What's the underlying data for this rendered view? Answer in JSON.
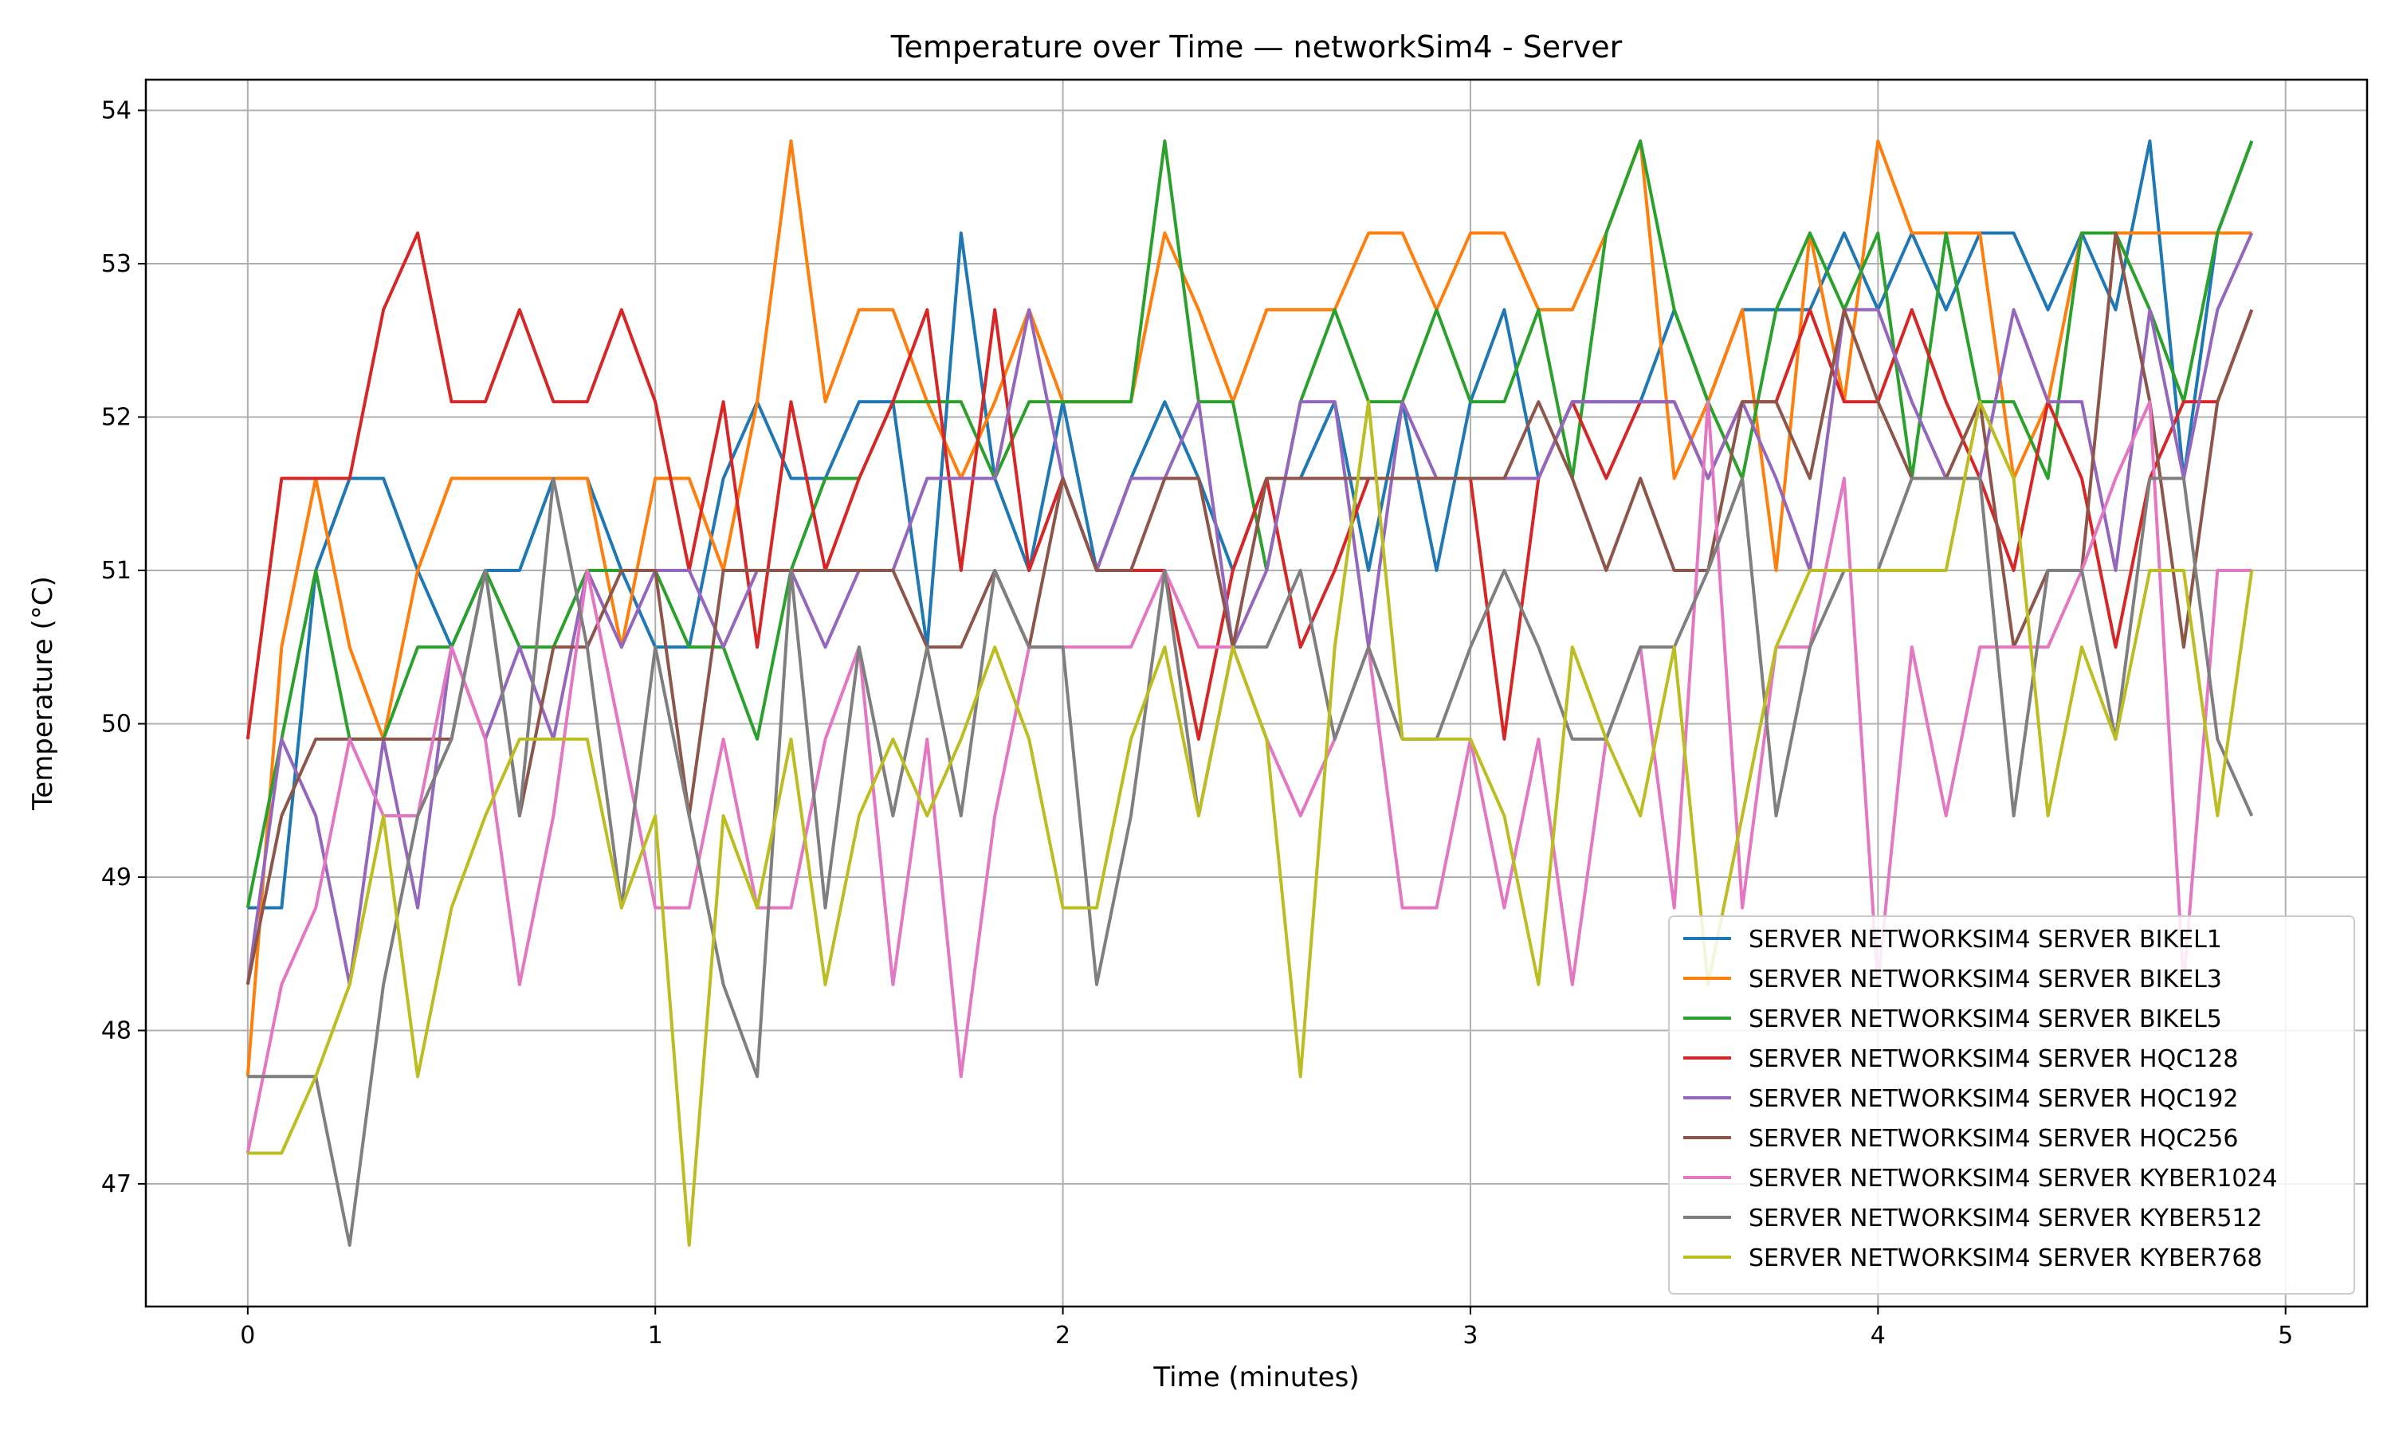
{
  "chart_data": {
    "type": "line",
    "title": "Temperature over Time — networkSim4 - Server",
    "xlabel": "Time (minutes)",
    "ylabel": "Temperature (°C)",
    "xlim": [
      -0.25,
      5.2
    ],
    "ylim": [
      46.2,
      54.2
    ],
    "xticks": [
      0,
      1,
      2,
      3,
      4,
      5
    ],
    "yticks": [
      47,
      48,
      49,
      50,
      51,
      52,
      53,
      54
    ],
    "grid": true,
    "legend_position": "lower-right",
    "x": [
      0,
      0.083,
      0.167,
      0.25,
      0.333,
      0.417,
      0.5,
      0.583,
      0.667,
      0.75,
      0.833,
      0.917,
      1,
      1.083,
      1.167,
      1.25,
      1.333,
      1.417,
      1.5,
      1.583,
      1.667,
      1.75,
      1.833,
      1.917,
      2,
      2.083,
      2.167,
      2.25,
      2.333,
      2.417,
      2.5,
      2.583,
      2.667,
      2.75,
      2.833,
      2.917,
      3,
      3.083,
      3.167,
      3.25,
      3.333,
      3.417,
      3.5,
      3.583,
      3.667,
      3.75,
      3.833,
      3.917,
      4,
      4.083,
      4.167,
      4.25,
      4.333,
      4.417,
      4.5,
      4.583,
      4.667,
      4.75,
      4.833,
      4.917
    ],
    "series": [
      {
        "name": "SERVER NETWORKSIM4 SERVER BIKEL1",
        "color": "#1f77b4",
        "values": [
          48.8,
          48.8,
          51.0,
          51.6,
          51.6,
          51.0,
          50.5,
          51.0,
          51.0,
          51.6,
          51.6,
          51.0,
          50.5,
          50.5,
          51.6,
          52.1,
          51.6,
          51.6,
          52.1,
          52.1,
          50.5,
          53.2,
          51.6,
          51.0,
          52.1,
          51.0,
          51.6,
          52.1,
          51.6,
          51.0,
          51.6,
          51.6,
          52.1,
          51.0,
          52.1,
          51.0,
          52.1,
          52.7,
          51.6,
          52.1,
          52.1,
          52.1,
          52.7,
          52.1,
          52.7,
          52.7,
          52.7,
          53.2,
          52.7,
          53.2,
          52.7,
          53.2,
          53.2,
          52.7,
          53.2,
          52.7,
          53.8,
          51.6,
          53.2,
          53.8
        ]
      },
      {
        "name": "SERVER NETWORKSIM4 SERVER BIKEL3",
        "color": "#ff7f0e",
        "values": [
          47.7,
          50.5,
          51.6,
          50.5,
          49.9,
          51.0,
          51.6,
          51.6,
          51.6,
          51.6,
          51.6,
          50.5,
          51.6,
          51.6,
          51.0,
          52.1,
          53.8,
          52.1,
          52.7,
          52.7,
          52.1,
          51.6,
          52.1,
          52.7,
          52.1,
          52.1,
          52.1,
          53.2,
          52.7,
          52.1,
          52.7,
          52.7,
          52.7,
          53.2,
          53.2,
          52.7,
          53.2,
          53.2,
          52.7,
          52.7,
          53.2,
          53.8,
          51.6,
          52.1,
          52.7,
          51.0,
          53.2,
          52.1,
          53.8,
          53.2,
          53.2,
          53.2,
          51.6,
          52.1,
          53.2,
          53.2,
          53.2,
          53.2,
          53.2,
          53.2
        ]
      },
      {
        "name": "SERVER NETWORKSIM4 SERVER BIKEL5",
        "color": "#2ca02c",
        "values": [
          48.8,
          49.9,
          51.0,
          49.9,
          49.9,
          50.5,
          50.5,
          51.0,
          50.5,
          50.5,
          51.0,
          51.0,
          51.0,
          50.5,
          50.5,
          49.9,
          51.0,
          51.6,
          51.6,
          52.1,
          52.1,
          52.1,
          51.6,
          52.1,
          52.1,
          52.1,
          52.1,
          53.8,
          52.1,
          52.1,
          51.0,
          52.1,
          52.7,
          52.1,
          52.1,
          52.7,
          52.1,
          52.1,
          52.7,
          51.6,
          53.2,
          53.8,
          52.7,
          52.1,
          51.6,
          52.7,
          53.2,
          52.7,
          53.2,
          51.6,
          53.2,
          52.1,
          52.1,
          51.6,
          53.2,
          53.2,
          52.7,
          52.1,
          53.2,
          53.8
        ]
      },
      {
        "name": "SERVER NETWORKSIM4 SERVER HQC128",
        "color": "#d62728",
        "values": [
          49.9,
          51.6,
          51.6,
          51.6,
          52.7,
          53.2,
          52.1,
          52.1,
          52.7,
          52.1,
          52.1,
          52.7,
          52.1,
          51.0,
          52.1,
          50.5,
          52.1,
          51.0,
          51.6,
          52.1,
          52.7,
          51.0,
          52.7,
          51.0,
          51.6,
          51.0,
          51.0,
          51.0,
          49.9,
          51.0,
          51.6,
          50.5,
          51.0,
          51.6,
          51.6,
          51.6,
          51.6,
          49.9,
          51.6,
          52.1,
          51.6,
          52.1,
          52.1,
          51.6,
          52.1,
          52.1,
          52.7,
          52.1,
          52.1,
          52.7,
          52.1,
          51.6,
          51.0,
          52.1,
          51.6,
          50.5,
          51.6,
          52.1,
          52.1,
          52.7
        ]
      },
      {
        "name": "SERVER NETWORKSIM4 SERVER HQC192",
        "color": "#9467bd",
        "values": [
          48.3,
          49.9,
          49.4,
          48.3,
          49.9,
          48.8,
          50.5,
          49.9,
          50.5,
          49.9,
          51.0,
          50.5,
          51.0,
          51.0,
          50.5,
          51.0,
          51.0,
          50.5,
          51.0,
          51.0,
          51.6,
          51.6,
          51.6,
          52.7,
          51.6,
          51.0,
          51.6,
          51.6,
          52.1,
          50.5,
          51.0,
          52.1,
          52.1,
          50.5,
          52.1,
          51.6,
          51.6,
          51.6,
          51.6,
          52.1,
          52.1,
          52.1,
          52.1,
          51.6,
          52.1,
          51.6,
          51.0,
          52.7,
          52.7,
          52.1,
          51.6,
          51.6,
          52.7,
          52.1,
          52.1,
          51.0,
          52.7,
          51.6,
          52.7,
          53.2
        ]
      },
      {
        "name": "SERVER NETWORKSIM4 SERVER HQC256",
        "color": "#8c564b",
        "values": [
          48.3,
          49.4,
          49.9,
          49.9,
          49.9,
          49.9,
          49.9,
          51.0,
          49.4,
          50.5,
          50.5,
          51.0,
          51.0,
          49.4,
          51.0,
          51.0,
          51.0,
          51.0,
          51.0,
          51.0,
          50.5,
          50.5,
          51.0,
          50.5,
          51.6,
          51.0,
          51.0,
          51.6,
          51.6,
          50.5,
          51.6,
          51.6,
          51.6,
          51.6,
          51.6,
          51.6,
          51.6,
          51.6,
          52.1,
          51.6,
          51.0,
          51.6,
          51.0,
          51.0,
          52.1,
          52.1,
          51.6,
          52.7,
          52.1,
          51.6,
          51.6,
          52.1,
          50.5,
          51.0,
          51.0,
          53.2,
          52.1,
          50.5,
          52.1,
          52.7
        ]
      },
      {
        "name": "SERVER NETWORKSIM4 SERVER KYBER1024",
        "color": "#e377c2",
        "values": [
          47.2,
          48.3,
          48.8,
          49.9,
          49.4,
          49.4,
          50.5,
          49.9,
          48.3,
          49.4,
          51.0,
          49.9,
          48.8,
          48.8,
          49.9,
          48.8,
          48.8,
          49.9,
          50.5,
          48.3,
          49.9,
          47.7,
          49.4,
          50.5,
          50.5,
          50.5,
          50.5,
          51.0,
          50.5,
          50.5,
          49.9,
          49.4,
          49.9,
          50.5,
          48.8,
          48.8,
          49.9,
          48.8,
          49.9,
          48.3,
          49.9,
          50.5,
          48.8,
          52.1,
          48.8,
          50.5,
          50.5,
          51.6,
          48.3,
          50.5,
          49.4,
          50.5,
          50.5,
          50.5,
          51.0,
          51.6,
          52.1,
          48.3,
          51.0,
          51.0
        ]
      },
      {
        "name": "SERVER NETWORKSIM4 SERVER KYBER512",
        "color": "#7f7f7f",
        "values": [
          47.7,
          47.7,
          47.7,
          46.6,
          48.3,
          49.4,
          49.9,
          51.0,
          49.4,
          51.6,
          50.5,
          48.8,
          50.5,
          49.4,
          48.3,
          47.7,
          51.0,
          48.8,
          50.5,
          49.4,
          50.5,
          49.4,
          51.0,
          50.5,
          50.5,
          48.3,
          49.4,
          51.0,
          49.4,
          50.5,
          50.5,
          51.0,
          49.9,
          50.5,
          49.9,
          49.9,
          50.5,
          51.0,
          50.5,
          49.9,
          49.9,
          50.5,
          50.5,
          51.0,
          51.6,
          49.4,
          50.5,
          51.0,
          51.0,
          51.6,
          51.6,
          51.6,
          49.4,
          51.0,
          51.0,
          49.9,
          51.6,
          51.6,
          49.9,
          49.4
        ]
      },
      {
        "name": "SERVER NETWORKSIM4 SERVER KYBER768",
        "color": "#bcbd22",
        "values": [
          47.2,
          47.2,
          47.7,
          48.3,
          49.4,
          47.7,
          48.8,
          49.4,
          49.9,
          49.9,
          49.9,
          48.8,
          49.4,
          46.6,
          49.4,
          48.8,
          49.9,
          48.3,
          49.4,
          49.9,
          49.4,
          49.9,
          50.5,
          49.9,
          48.8,
          48.8,
          49.9,
          50.5,
          49.4,
          50.5,
          49.9,
          47.7,
          50.5,
          52.1,
          49.9,
          49.9,
          49.9,
          49.4,
          48.3,
          50.5,
          49.9,
          49.4,
          50.5,
          48.3,
          49.4,
          50.5,
          51.0,
          51.0,
          51.0,
          51.0,
          51.0,
          52.1,
          51.6,
          49.4,
          50.5,
          49.9,
          51.0,
          51.0,
          49.4,
          51.0
        ]
      }
    ]
  }
}
